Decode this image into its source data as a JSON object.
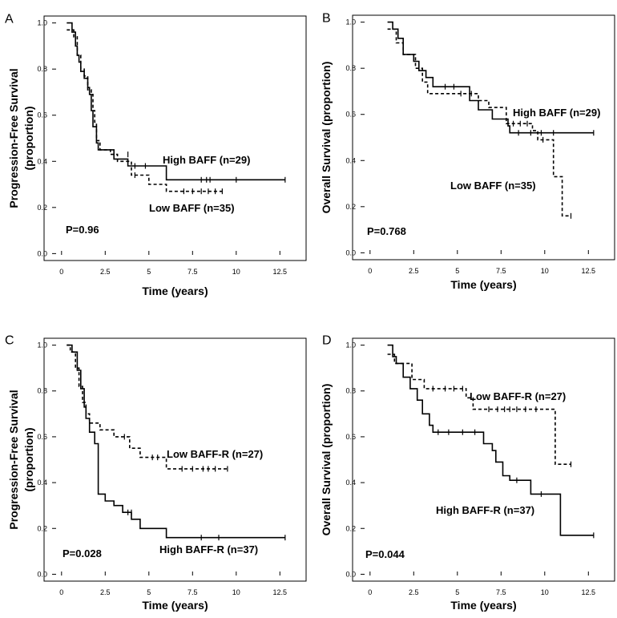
{
  "chart_data": [
    {
      "type": "line",
      "panel": "A",
      "xlabel": "Time (years)",
      "ylabel": [
        "Progression-Free Survival",
        "(proportion)"
      ],
      "xlim": [
        -1,
        14
      ],
      "ylim": [
        -0.03,
        1.03
      ],
      "xticks": [
        "0",
        "2.5",
        "5",
        "7.5",
        "10",
        "12.5"
      ],
      "xtick_values": [
        0,
        2.5,
        5,
        7.5,
        10,
        12.5
      ],
      "yticks": [
        "0.0",
        "0.2",
        "0.4",
        "0.6",
        "0.8",
        "1.0"
      ],
      "ytick_values": [
        0,
        0.2,
        0.4,
        0.6,
        0.8,
        1.0
      ],
      "pvalue": "P=0.96",
      "series": [
        {
          "name": "High BAFF (n=29)",
          "style": "solid",
          "steps": [
            [
              0.3,
              1.0
            ],
            [
              0.6,
              0.96
            ],
            [
              0.8,
              0.9
            ],
            [
              0.9,
              0.86
            ],
            [
              1.0,
              0.83
            ],
            [
              1.1,
              0.79
            ],
            [
              1.3,
              0.76
            ],
            [
              1.5,
              0.72
            ],
            [
              1.6,
              0.69
            ],
            [
              1.7,
              0.62
            ],
            [
              1.8,
              0.55
            ],
            [
              2.0,
              0.48
            ],
            [
              2.1,
              0.45
            ],
            [
              3.0,
              0.41
            ],
            [
              3.8,
              0.38
            ],
            [
              6.0,
              0.32
            ],
            [
              12.8,
              0.32
            ]
          ],
          "censors": [
            [
              4.2,
              0.38
            ],
            [
              4.8,
              0.38
            ],
            [
              8.0,
              0.32
            ],
            [
              8.3,
              0.32
            ],
            [
              8.5,
              0.32
            ],
            [
              10.0,
              0.32
            ],
            [
              12.8,
              0.32
            ]
          ]
        },
        {
          "name": "Low BAFF (n=35)",
          "style": "dashed",
          "steps": [
            [
              0.3,
              0.97
            ],
            [
              0.7,
              0.94
            ],
            [
              0.9,
              0.86
            ],
            [
              1.1,
              0.8
            ],
            [
              1.3,
              0.77
            ],
            [
              1.5,
              0.71
            ],
            [
              1.7,
              0.69
            ],
            [
              1.8,
              0.62
            ],
            [
              1.9,
              0.57
            ],
            [
              2.0,
              0.49
            ],
            [
              2.2,
              0.45
            ],
            [
              2.8,
              0.43
            ],
            [
              3.2,
              0.4
            ],
            [
              4.0,
              0.34
            ],
            [
              5.0,
              0.3
            ],
            [
              6.0,
              0.27
            ],
            [
              9.2,
              0.27
            ]
          ],
          "censors": [
            [
              3.8,
              0.43
            ],
            [
              4.2,
              0.34
            ],
            [
              7.0,
              0.27
            ],
            [
              7.5,
              0.27
            ],
            [
              8.0,
              0.27
            ],
            [
              8.4,
              0.27
            ],
            [
              8.8,
              0.27
            ],
            [
              9.2,
              0.27
            ]
          ]
        }
      ]
    },
    {
      "type": "line",
      "panel": "B",
      "xlabel": "Time (years)",
      "ylabel": [
        "Overall Survival (proportion)"
      ],
      "xlim": [
        -1,
        14
      ],
      "ylim": [
        -0.03,
        1.03
      ],
      "xticks": [
        "0",
        "2.5",
        "5",
        "7.5",
        "10",
        "12.5"
      ],
      "xtick_values": [
        0,
        2.5,
        5,
        7.5,
        10,
        12.5
      ],
      "yticks": [
        "0.0",
        "0.2",
        "0.4",
        "0.6",
        "0.8",
        "1.0"
      ],
      "ytick_values": [
        0,
        0.2,
        0.4,
        0.6,
        0.8,
        1.0
      ],
      "pvalue": "P=0.768",
      "series": [
        {
          "name": "High BAFF (n=29)",
          "style": "solid",
          "steps": [
            [
              1.0,
              1.0
            ],
            [
              1.3,
              0.97
            ],
            [
              1.6,
              0.93
            ],
            [
              1.9,
              0.86
            ],
            [
              2.5,
              0.83
            ],
            [
              2.8,
              0.79
            ],
            [
              3.2,
              0.76
            ],
            [
              3.6,
              0.72
            ],
            [
              5.7,
              0.66
            ],
            [
              6.2,
              0.62
            ],
            [
              7.0,
              0.58
            ],
            [
              7.9,
              0.55
            ],
            [
              8.0,
              0.52
            ],
            [
              12.8,
              0.52
            ]
          ],
          "censors": [
            [
              4.3,
              0.72
            ],
            [
              4.8,
              0.72
            ],
            [
              8.5,
              0.52
            ],
            [
              9.2,
              0.52
            ],
            [
              9.8,
              0.52
            ],
            [
              10.5,
              0.52
            ],
            [
              12.8,
              0.52
            ]
          ]
        },
        {
          "name": "Low BAFF (n=35)",
          "style": "dashed",
          "steps": [
            [
              1.0,
              0.97
            ],
            [
              1.5,
              0.91
            ],
            [
              1.9,
              0.86
            ],
            [
              2.6,
              0.8
            ],
            [
              3.0,
              0.74
            ],
            [
              3.3,
              0.69
            ],
            [
              6.2,
              0.66
            ],
            [
              6.8,
              0.63
            ],
            [
              7.8,
              0.56
            ],
            [
              9.3,
              0.53
            ],
            [
              9.6,
              0.49
            ],
            [
              10.5,
              0.33
            ],
            [
              11.0,
              0.16
            ],
            [
              11.5,
              0.16
            ]
          ],
          "censors": [
            [
              5.2,
              0.69
            ],
            [
              5.8,
              0.69
            ],
            [
              8.2,
              0.56
            ],
            [
              8.6,
              0.56
            ],
            [
              9.0,
              0.56
            ],
            [
              9.9,
              0.49
            ],
            [
              11.5,
              0.16
            ]
          ]
        }
      ]
    },
    {
      "type": "line",
      "panel": "C",
      "xlabel": "Time (years)",
      "ylabel": [
        "Progression-Free Survival",
        "(proportion)"
      ],
      "xlim": [
        -1,
        14
      ],
      "ylim": [
        -0.03,
        1.03
      ],
      "xticks": [
        "0",
        "2.5",
        "5",
        "7.5",
        "10",
        "12.5"
      ],
      "xtick_values": [
        0,
        2.5,
        5,
        7.5,
        10,
        12.5
      ],
      "yticks": [
        "0.0",
        "0.2",
        "0.4",
        "0.6",
        "0.8",
        "1.0"
      ],
      "ytick_values": [
        0,
        0.2,
        0.4,
        0.6,
        0.8,
        1.0
      ],
      "pvalue": "P=0.028",
      "series": [
        {
          "name": "Low BAFF-R (n=27)",
          "style": "dashed",
          "steps": [
            [
              0.3,
              1.0
            ],
            [
              0.5,
              0.97
            ],
            [
              0.8,
              0.9
            ],
            [
              1.0,
              0.82
            ],
            [
              1.2,
              0.75
            ],
            [
              1.4,
              0.7
            ],
            [
              1.6,
              0.66
            ],
            [
              2.2,
              0.63
            ],
            [
              3.0,
              0.6
            ],
            [
              3.9,
              0.55
            ],
            [
              4.5,
              0.51
            ],
            [
              6.0,
              0.46
            ],
            [
              9.5,
              0.46
            ]
          ],
          "censors": [
            [
              3.6,
              0.6
            ],
            [
              5.2,
              0.51
            ],
            [
              5.5,
              0.51
            ],
            [
              6.9,
              0.46
            ],
            [
              7.5,
              0.46
            ],
            [
              8.1,
              0.46
            ],
            [
              8.4,
              0.46
            ],
            [
              8.8,
              0.46
            ],
            [
              9.5,
              0.46
            ]
          ]
        },
        {
          "name": "High BAFF-R (n=37)",
          "style": "solid",
          "steps": [
            [
              0.3,
              1.0
            ],
            [
              0.6,
              0.97
            ],
            [
              0.9,
              0.89
            ],
            [
              1.1,
              0.81
            ],
            [
              1.3,
              0.73
            ],
            [
              1.4,
              0.68
            ],
            [
              1.6,
              0.62
            ],
            [
              1.9,
              0.57
            ],
            [
              2.1,
              0.35
            ],
            [
              2.5,
              0.32
            ],
            [
              3.0,
              0.3
            ],
            [
              3.5,
              0.27
            ],
            [
              4.0,
              0.24
            ],
            [
              4.5,
              0.2
            ],
            [
              6.0,
              0.16
            ],
            [
              12.8,
              0.16
            ]
          ],
          "censors": [
            [
              3.8,
              0.27
            ],
            [
              4.0,
              0.27
            ],
            [
              8.0,
              0.16
            ],
            [
              9.0,
              0.16
            ],
            [
              12.8,
              0.16
            ]
          ]
        }
      ]
    },
    {
      "type": "line",
      "panel": "D",
      "xlabel": "Time (years)",
      "ylabel": [
        "Overall Survival (proportion)"
      ],
      "xlim": [
        -1,
        14
      ],
      "ylim": [
        -0.03,
        1.03
      ],
      "xticks": [
        "0",
        "2.5",
        "5",
        "7.5",
        "10",
        "12.5"
      ],
      "xtick_values": [
        0,
        2.5,
        5,
        7.5,
        10,
        12.5
      ],
      "yticks": [
        "0.0",
        "0.2",
        "0.4",
        "0.6",
        "0.8",
        "1.0"
      ],
      "ytick_values": [
        0,
        0.2,
        0.4,
        0.6,
        0.8,
        1.0
      ],
      "pvalue": "P=0.044",
      "series": [
        {
          "name": "Low BAFF-R (n=27)",
          "style": "dashed",
          "steps": [
            [
              1.0,
              0.96
            ],
            [
              1.4,
              0.92
            ],
            [
              2.4,
              0.85
            ],
            [
              3.1,
              0.81
            ],
            [
              5.5,
              0.77
            ],
            [
              5.9,
              0.72
            ],
            [
              10.6,
              0.48
            ],
            [
              11.5,
              0.48
            ]
          ],
          "censors": [
            [
              3.6,
              0.81
            ],
            [
              4.3,
              0.81
            ],
            [
              4.8,
              0.81
            ],
            [
              5.3,
              0.81
            ],
            [
              6.8,
              0.72
            ],
            [
              7.3,
              0.72
            ],
            [
              7.7,
              0.72
            ],
            [
              8.0,
              0.72
            ],
            [
              8.4,
              0.72
            ],
            [
              8.9,
              0.72
            ],
            [
              9.5,
              0.72
            ],
            [
              11.5,
              0.48
            ]
          ]
        },
        {
          "name": "High BAFF-R (n=37)",
          "style": "solid",
          "steps": [
            [
              1.0,
              1.0
            ],
            [
              1.3,
              0.95
            ],
            [
              1.5,
              0.92
            ],
            [
              1.9,
              0.86
            ],
            [
              2.3,
              0.81
            ],
            [
              2.7,
              0.76
            ],
            [
              3.0,
              0.7
            ],
            [
              3.4,
              0.65
            ],
            [
              3.6,
              0.62
            ],
            [
              6.5,
              0.57
            ],
            [
              7.0,
              0.54
            ],
            [
              7.2,
              0.49
            ],
            [
              7.6,
              0.43
            ],
            [
              8.0,
              0.41
            ],
            [
              9.2,
              0.35
            ],
            [
              10.9,
              0.17
            ],
            [
              12.8,
              0.17
            ]
          ],
          "censors": [
            [
              3.9,
              0.62
            ],
            [
              4.5,
              0.62
            ],
            [
              5.3,
              0.62
            ],
            [
              6.0,
              0.62
            ],
            [
              8.4,
              0.41
            ],
            [
              9.8,
              0.35
            ],
            [
              12.8,
              0.17
            ]
          ]
        }
      ]
    }
  ]
}
